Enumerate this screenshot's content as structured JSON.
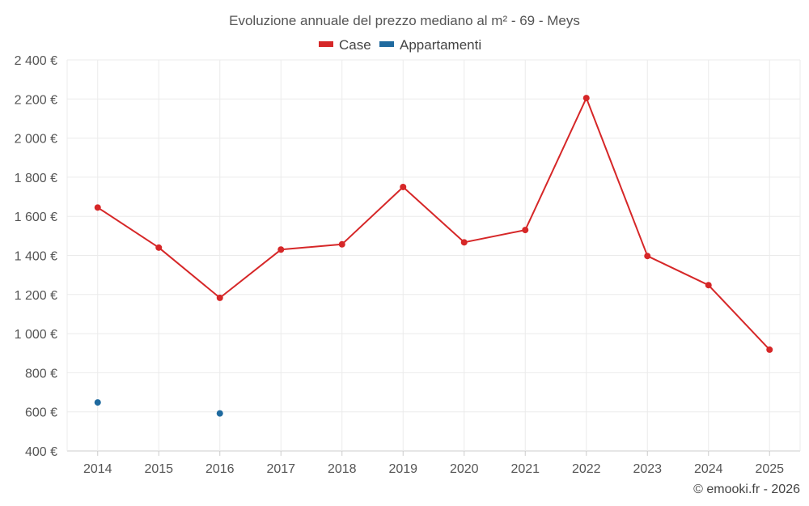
{
  "chart_data": {
    "type": "line",
    "title": "Evoluzione annuale del prezzo mediano al m² - 69 - Meys",
    "categories": [
      "2014",
      "2015",
      "2016",
      "2017",
      "2018",
      "2019",
      "2020",
      "2021",
      "2022",
      "2023",
      "2024",
      "2025"
    ],
    "ylim": [
      400,
      2400
    ],
    "yticks": [
      400,
      600,
      800,
      1000,
      1200,
      1400,
      1600,
      1800,
      2000,
      2200,
      2400
    ],
    "ytick_labels": [
      "400 €",
      "600 €",
      "800 €",
      "1 000 €",
      "1 200 €",
      "1 400 €",
      "1 600 €",
      "1 800 €",
      "2 000 €",
      "2 200 €",
      "2 400 €"
    ],
    "xlabel": "",
    "ylabel": "",
    "grid": true,
    "legend_position": "top-center",
    "series": [
      {
        "name": "Case",
        "color": "#d62728",
        "values": [
          1645,
          1440,
          1183,
          1430,
          1457,
          1750,
          1467,
          1530,
          2205,
          1397,
          1248,
          918
        ]
      },
      {
        "name": "Appartamenti",
        "color": "#1f6a9f",
        "values": [
          648,
          null,
          592,
          null,
          null,
          null,
          null,
          null,
          null,
          null,
          null,
          null
        ]
      }
    ]
  },
  "credit": "© emooki.fr - 2026"
}
